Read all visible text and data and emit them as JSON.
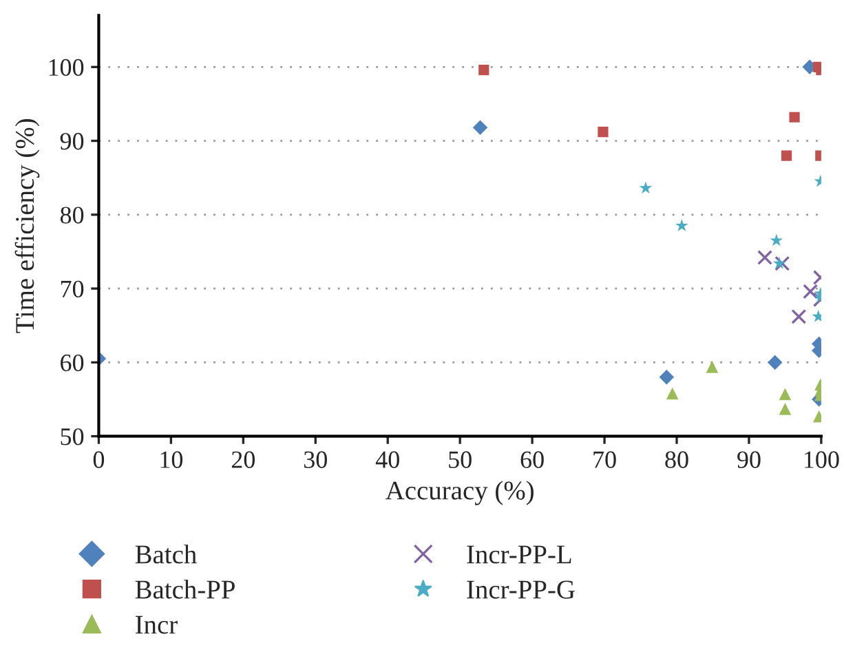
{
  "chart_data": {
    "type": "scatter",
    "xlabel": "Accuracy (%)",
    "ylabel": "Time efficiency (%)",
    "xlim": [
      0,
      100
    ],
    "xticks": [
      0,
      10,
      20,
      30,
      40,
      50,
      60,
      70,
      80,
      90,
      100
    ],
    "ylim": [
      50,
      107
    ],
    "yticks": [
      50,
      60,
      70,
      80,
      90,
      100
    ],
    "grid": "y",
    "legend": "bottom",
    "series": [
      {
        "name": "Batch",
        "color": "#4f81bd",
        "marker": "diamond",
        "x": [
          0,
          52.8,
          98.4,
          78.6,
          93.6,
          99.7,
          99.7,
          99.7
        ],
        "values": [
          60.5,
          91.8,
          100,
          58.0,
          60.0,
          62.5,
          61.6,
          55.0
        ]
      },
      {
        "name": "Batch-PP",
        "color": "#c0504d",
        "marker": "square",
        "x": [
          53.3,
          69.8,
          99.6,
          100,
          96.3,
          95.2,
          99.9
        ],
        "values": [
          99.6,
          91.2,
          100,
          99.6,
          93.2,
          88.0,
          88.0
        ]
      },
      {
        "name": "Incr",
        "color": "#9bbb59",
        "marker": "triangle",
        "x": [
          79.4,
          84.9,
          95.0,
          95.0,
          99.7,
          99.9,
          99.9,
          99.9
        ],
        "values": [
          55.8,
          59.4,
          55.7,
          53.7,
          52.7,
          57.0,
          56.2,
          55.6
        ]
      },
      {
        "name": "Incr-PP-L",
        "color": "#8064a2",
        "marker": "cross",
        "x": [
          92.2,
          94.6,
          99.9,
          98.5,
          99.9,
          96.9
        ],
        "values": [
          74.2,
          73.4,
          71.5,
          69.6,
          68.5,
          66.2
        ]
      },
      {
        "name": "Incr-PP-G",
        "color": "#4bacc6",
        "marker": "star",
        "x": [
          75.7,
          80.7,
          93.8,
          94.2,
          99.9,
          99.9,
          99.9,
          99.6
        ],
        "values": [
          83.6,
          78.5,
          76.5,
          73.4,
          84.5,
          69.3,
          68.8,
          66.2
        ]
      }
    ]
  }
}
